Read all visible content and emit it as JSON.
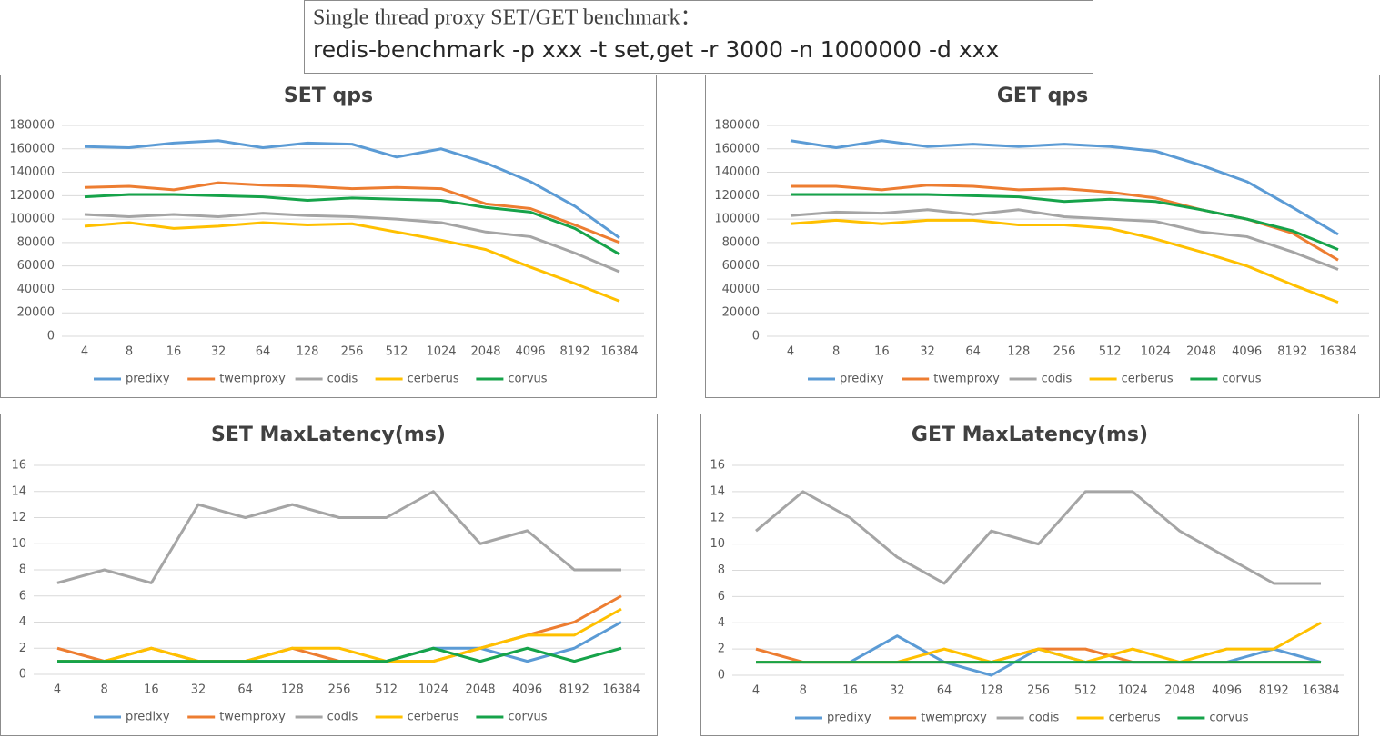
{
  "header": {
    "line1": "Single thread proxy SET/GET benchmark：",
    "line2": "redis-benchmark -p xxx -t set,get -r 3000 -n 1000000 -d xxx"
  },
  "chart_data": [
    {
      "type": "line",
      "title": "SET  qps",
      "grid": true,
      "legend": "bottom",
      "categories": [
        "4",
        "8",
        "16",
        "32",
        "64",
        "128",
        "256",
        "512",
        "1024",
        "2048",
        "4096",
        "8192",
        "16384"
      ],
      "ylim": [
        0,
        180000
      ],
      "yticks": [
        0,
        20000,
        40000,
        60000,
        80000,
        100000,
        120000,
        140000,
        160000,
        180000
      ],
      "series": [
        {
          "name": "predixy",
          "color": "#5b9bd5",
          "values": [
            162000,
            161000,
            165000,
            167000,
            161000,
            165000,
            164000,
            153000,
            160000,
            148000,
            132000,
            111000,
            84000
          ]
        },
        {
          "name": "twemproxy",
          "color": "#ed7d31",
          "values": [
            127000,
            128000,
            125000,
            131000,
            129000,
            128000,
            126000,
            127000,
            126000,
            113000,
            109000,
            95000,
            80000
          ]
        },
        {
          "name": "codis",
          "color": "#a5a5a5",
          "values": [
            104000,
            102000,
            104000,
            102000,
            105000,
            103000,
            102000,
            100000,
            97000,
            89000,
            85000,
            71000,
            55000
          ]
        },
        {
          "name": "cerberus",
          "color": "#ffc000",
          "values": [
            94000,
            97000,
            92000,
            94000,
            97000,
            95000,
            96000,
            89000,
            82000,
            74000,
            59000,
            45000,
            30000
          ]
        },
        {
          "name": "corvus",
          "color": "#16a34a",
          "values": [
            119000,
            121000,
            121000,
            120000,
            119000,
            116000,
            118000,
            117000,
            116000,
            110000,
            106000,
            92000,
            70000
          ]
        }
      ]
    },
    {
      "type": "line",
      "title": "GET  qps",
      "grid": true,
      "legend": "bottom",
      "categories": [
        "4",
        "8",
        "16",
        "32",
        "64",
        "128",
        "256",
        "512",
        "1024",
        "2048",
        "4096",
        "8192",
        "16384"
      ],
      "ylim": [
        0,
        180000
      ],
      "yticks": [
        0,
        20000,
        40000,
        60000,
        80000,
        100000,
        120000,
        140000,
        160000,
        180000
      ],
      "series": [
        {
          "name": "predixy",
          "color": "#5b9bd5",
          "values": [
            167000,
            161000,
            167000,
            162000,
            164000,
            162000,
            164000,
            162000,
            158000,
            146000,
            132000,
            110000,
            87000
          ]
        },
        {
          "name": "twemproxy",
          "color": "#ed7d31",
          "values": [
            128000,
            128000,
            125000,
            129000,
            128000,
            125000,
            126000,
            123000,
            118000,
            108000,
            100000,
            88000,
            65000
          ]
        },
        {
          "name": "codis",
          "color": "#a5a5a5",
          "values": [
            103000,
            106000,
            105000,
            108000,
            104000,
            108000,
            102000,
            100000,
            98000,
            89000,
            85000,
            72000,
            57000
          ]
        },
        {
          "name": "cerberus",
          "color": "#ffc000",
          "values": [
            96000,
            99000,
            96000,
            99000,
            99000,
            95000,
            95000,
            92000,
            83000,
            72000,
            60000,
            44000,
            29000
          ]
        },
        {
          "name": "corvus",
          "color": "#16a34a",
          "values": [
            121000,
            121000,
            121000,
            121000,
            120000,
            119000,
            115000,
            117000,
            115000,
            108000,
            100000,
            90000,
            74000
          ]
        }
      ]
    },
    {
      "type": "line",
      "title": "SET MaxLatency(ms)",
      "grid": true,
      "legend": "bottom",
      "categories": [
        "4",
        "8",
        "16",
        "32",
        "64",
        "128",
        "256",
        "512",
        "1024",
        "2048",
        "4096",
        "8192",
        "16384"
      ],
      "ylim": [
        0,
        16
      ],
      "yticks": [
        0,
        2,
        4,
        6,
        8,
        10,
        12,
        14,
        16
      ],
      "series": [
        {
          "name": "predixy",
          "color": "#5b9bd5",
          "values": [
            1,
            1,
            1,
            1,
            1,
            1,
            1,
            1,
            2,
            2,
            1,
            2,
            4
          ]
        },
        {
          "name": "twemproxy",
          "color": "#ed7d31",
          "values": [
            2,
            1,
            2,
            1,
            1,
            2,
            1,
            1,
            1,
            2,
            3,
            4,
            6
          ]
        },
        {
          "name": "codis",
          "color": "#a5a5a5",
          "values": [
            7,
            8,
            7,
            13,
            12,
            13,
            12,
            12,
            14,
            10,
            11,
            8,
            8
          ]
        },
        {
          "name": "cerberus",
          "color": "#ffc000",
          "values": [
            1,
            1,
            2,
            1,
            1,
            2,
            2,
            1,
            1,
            2,
            3,
            3,
            5
          ]
        },
        {
          "name": "corvus",
          "color": "#16a34a",
          "values": [
            1,
            1,
            1,
            1,
            1,
            1,
            1,
            1,
            2,
            1,
            2,
            1,
            2
          ]
        }
      ]
    },
    {
      "type": "line",
      "title": "GET MaxLatency(ms)",
      "grid": true,
      "legend": "bottom",
      "categories": [
        "4",
        "8",
        "16",
        "32",
        "64",
        "128",
        "256",
        "512",
        "1024",
        "2048",
        "4096",
        "8192",
        "16384"
      ],
      "ylim": [
        0,
        16
      ],
      "yticks": [
        0,
        2,
        4,
        6,
        8,
        10,
        12,
        14,
        16
      ],
      "series": [
        {
          "name": "predixy",
          "color": "#5b9bd5",
          "values": [
            1,
            1,
            1,
            3,
            1,
            0,
            2,
            1,
            1,
            1,
            1,
            2,
            1
          ]
        },
        {
          "name": "twemproxy",
          "color": "#ed7d31",
          "values": [
            2,
            1,
            1,
            1,
            1,
            1,
            2,
            2,
            1,
            1,
            1,
            1,
            1
          ]
        },
        {
          "name": "codis",
          "color": "#a5a5a5",
          "values": [
            11,
            14,
            12,
            9,
            7,
            11,
            10,
            14,
            14,
            11,
            9,
            7,
            7
          ]
        },
        {
          "name": "cerberus",
          "color": "#ffc000",
          "values": [
            1,
            1,
            1,
            1,
            2,
            1,
            2,
            1,
            2,
            1,
            2,
            2,
            4
          ]
        },
        {
          "name": "corvus",
          "color": "#16a34a",
          "values": [
            1,
            1,
            1,
            1,
            1,
            1,
            1,
            1,
            1,
            1,
            1,
            1,
            1
          ]
        }
      ]
    }
  ]
}
